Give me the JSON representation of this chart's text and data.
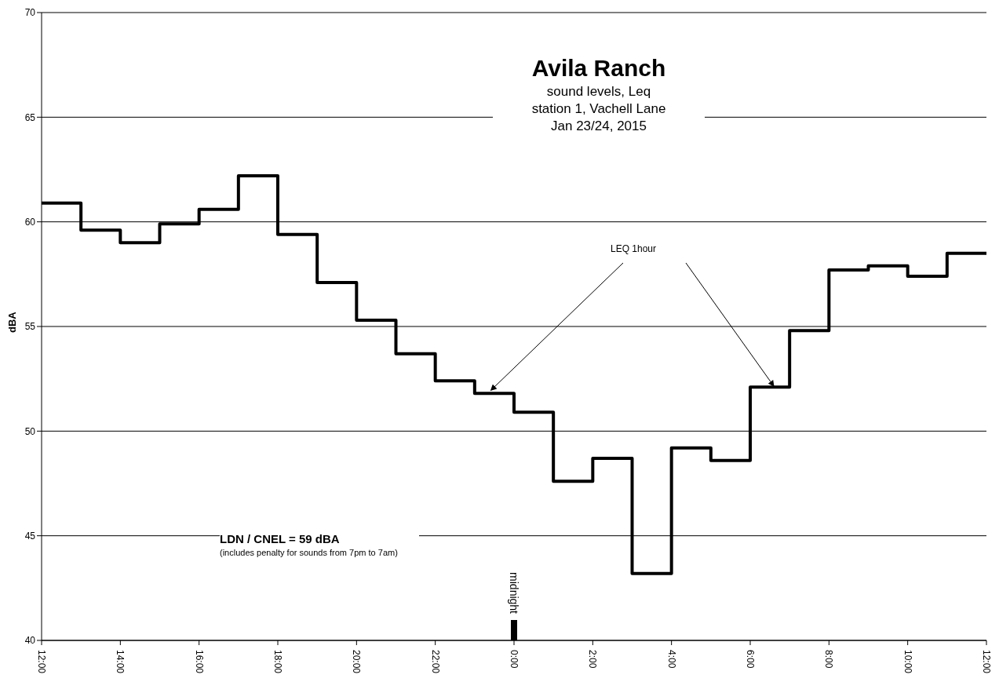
{
  "chart_data": {
    "type": "step",
    "title": "Avila Ranch",
    "subtitle": "sound levels, Leq\nstation 1, Vachell  Lane\nJan 23/24, 2015",
    "ylabel": "dBA",
    "x": [
      "2015-01-23T12:00",
      "2015-01-23T13:00",
      "2015-01-23T14:00",
      "2015-01-23T15:00",
      "2015-01-23T16:00",
      "2015-01-23T17:00",
      "2015-01-23T18:00",
      "2015-01-23T19:00",
      "2015-01-23T20:00",
      "2015-01-23T21:00",
      "2015-01-23T22:00",
      "2015-01-23T23:00",
      "2015-01-24T00:00",
      "2015-01-24T01:00",
      "2015-01-24T02:00",
      "2015-01-24T03:00",
      "2015-01-24T04:00",
      "2015-01-24T05:00",
      "2015-01-24T06:00",
      "2015-01-24T07:00",
      "2015-01-24T08:00",
      "2015-01-24T09:00",
      "2015-01-24T10:00",
      "2015-01-24T11:00",
      "2015-01-24T12:00"
    ],
    "series": [
      {
        "color": "#000000",
        "values": [
          60.9,
          59.6,
          59.0,
          59.9,
          60.6,
          62.2,
          59.4,
          57.1,
          55.3,
          53.7,
          52.4,
          51.8,
          50.9,
          47.6,
          48.7,
          43.2,
          49.2,
          48.6,
          52.1,
          54.8,
          57.7,
          57.9,
          57.4,
          58.5,
          58.5
        ]
      }
    ],
    "xlim": [
      "2015-01-23T12:00",
      "2015-01-24T12:00"
    ],
    "xticks": [
      {
        "value": "2015-01-23T12:00",
        "label": "12:00"
      },
      {
        "value": "2015-01-23T14:00",
        "label": "14:00"
      },
      {
        "value": "2015-01-23T16:00",
        "label": "16:00"
      },
      {
        "value": "2015-01-23T18:00",
        "label": "18:00"
      },
      {
        "value": "2015-01-23T20:00",
        "label": "20:00"
      },
      {
        "value": "2015-01-23T22:00",
        "label": "22:00"
      },
      {
        "value": "2015-01-24T00:00",
        "label": "0:00"
      },
      {
        "value": "2015-01-24T02:00",
        "label": "2:00"
      },
      {
        "value": "2015-01-24T04:00",
        "label": "4:00"
      },
      {
        "value": "2015-01-24T06:00",
        "label": "6:00"
      },
      {
        "value": "2015-01-24T08:00",
        "label": "8:00"
      },
      {
        "value": "2015-01-24T10:00",
        "label": "10:00"
      },
      {
        "value": "2015-01-24T12:00",
        "label": "12:00"
      }
    ],
    "ylim": [
      40,
      70
    ],
    "yticks": [
      40,
      45,
      50,
      55,
      60,
      65,
      70
    ],
    "grid": "y",
    "line_style": "solid",
    "marker": "none",
    "annotations": [
      {
        "text": "LEQ 1hour",
        "x": "2015-01-23T23:20",
        "y": 51.8
      },
      "LDN / CNEL = 59 dBA",
      "(includes penalty for sounds from 7pm to 7am)",
      "midnight"
    ]
  }
}
